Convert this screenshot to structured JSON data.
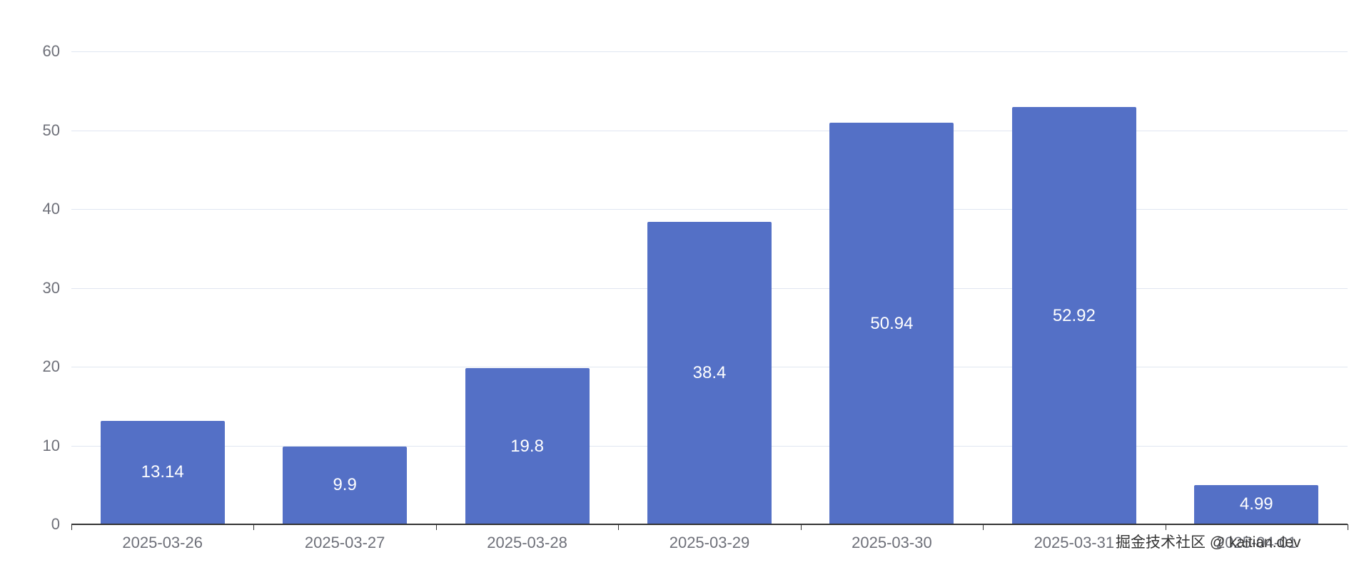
{
  "chart_data": {
    "type": "bar",
    "categories": [
      "2025-03-26",
      "2025-03-27",
      "2025-03-28",
      "2025-03-29",
      "2025-03-30",
      "2025-03-31",
      "2025-04-01"
    ],
    "values": [
      13.14,
      9.9,
      19.8,
      38.4,
      50.94,
      52.92,
      4.99
    ],
    "value_labels": [
      "13.14",
      "9.9",
      "19.8",
      "38.4",
      "50.94",
      "52.92",
      "4.99"
    ],
    "title": "",
    "xlabel": "",
    "ylabel": "",
    "ylim": [
      0,
      60
    ],
    "y_ticks": [
      0,
      10,
      20,
      30,
      40,
      50,
      60
    ],
    "grid": true,
    "legend": "none",
    "bar_color": "#5470c6",
    "label_color": "#ffffff",
    "axis_text_color": "#6e7079",
    "grid_color": "#e0e6f1",
    "axis_line_color": "#333333"
  },
  "watermark": {
    "text": "掘金技术社区 @ kaitian.dev",
    "color": "#333333"
  }
}
